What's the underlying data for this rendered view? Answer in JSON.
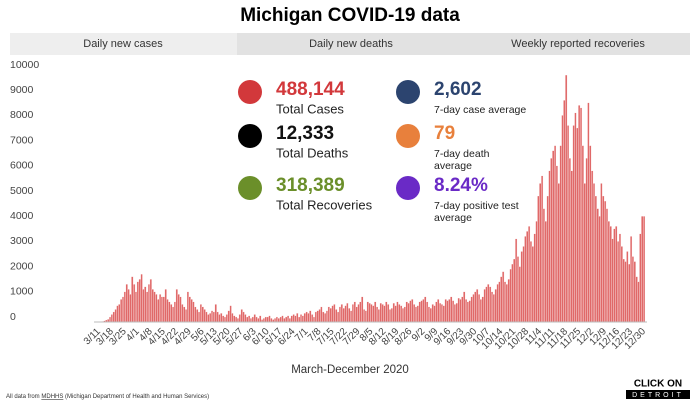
{
  "header": {
    "title": "Michigan COVID-19 data"
  },
  "tabs": [
    "Daily new cases",
    "Daily new deaths",
    "Weekly reported recoveries"
  ],
  "stats": [
    {
      "value": "488,144",
      "label": "Total Cases",
      "color": "#d2383b"
    },
    {
      "value": "2,602",
      "label": "7-day case average",
      "color": "#2c446f"
    },
    {
      "value": "12,333",
      "label": "Total Deaths",
      "color": "#000000"
    },
    {
      "value": "79",
      "label": "7-day death average",
      "color": "#e8803c"
    },
    {
      "value": "318,389",
      "label": "Total Recoveries",
      "color": "#6b8f2a"
    },
    {
      "value": "8.24%",
      "label": "7-day positive test average",
      "color": "#6a2ac6"
    }
  ],
  "chart_data": {
    "type": "bar",
    "color": "#e06868",
    "x_label": "March-December 2020",
    "ylim": [
      0,
      10000
    ],
    "yticks": [
      0,
      1000,
      2000,
      3000,
      4000,
      5000,
      6000,
      7000,
      8000,
      9000,
      10000
    ],
    "categories": [
      "3/11",
      null,
      null,
      null,
      null,
      null,
      null,
      "3/18",
      null,
      null,
      null,
      null,
      null,
      null,
      "3/25",
      null,
      null,
      null,
      null,
      null,
      null,
      "4/1",
      null,
      null,
      null,
      null,
      null,
      null,
      "4/8",
      null,
      null,
      null,
      null,
      null,
      null,
      "4/15",
      null,
      null,
      null,
      null,
      null,
      null,
      "4/22",
      null,
      null,
      null,
      null,
      null,
      null,
      "4/29",
      null,
      null,
      null,
      null,
      null,
      null,
      "5/6",
      null,
      null,
      null,
      null,
      null,
      null,
      "5/13",
      null,
      null,
      null,
      null,
      null,
      null,
      "5/20",
      null,
      null,
      null,
      null,
      null,
      null,
      "5/27",
      null,
      null,
      null,
      null,
      null,
      null,
      "6/3",
      null,
      null,
      null,
      null,
      null,
      null,
      "6/10",
      null,
      null,
      null,
      null,
      null,
      null,
      "6/17",
      null,
      null,
      null,
      null,
      null,
      null,
      "6/24",
      null,
      null,
      null,
      null,
      null,
      null,
      "7/1",
      null,
      null,
      null,
      null,
      null,
      null,
      "7/8",
      null,
      null,
      null,
      null,
      null,
      null,
      "7/15",
      null,
      null,
      null,
      null,
      null,
      null,
      "7/22",
      null,
      null,
      null,
      null,
      null,
      null,
      "7/29",
      null,
      null,
      null,
      null,
      null,
      null,
      "8/5",
      null,
      null,
      null,
      null,
      null,
      null,
      "8/12",
      null,
      null,
      null,
      null,
      null,
      null,
      "8/19",
      null,
      null,
      null,
      null,
      null,
      null,
      "8/26",
      null,
      null,
      null,
      null,
      null,
      null,
      "9/2",
      null,
      null,
      null,
      null,
      null,
      null,
      "9/9",
      null,
      null,
      null,
      null,
      null,
      null,
      "9/16",
      null,
      null,
      null,
      null,
      null,
      null,
      "9/23",
      null,
      null,
      null,
      null,
      null,
      null,
      "9/30",
      null,
      null,
      null,
      null,
      null,
      null,
      "10/7",
      null,
      null,
      null,
      null,
      null,
      null,
      "10/14",
      null,
      null,
      null,
      null,
      null,
      null,
      "10/21",
      null,
      null,
      null,
      null,
      null,
      null,
      "10/28",
      null,
      null,
      null,
      null,
      null,
      null,
      "11/4",
      null,
      null,
      null,
      null,
      null,
      null,
      "11/11",
      null,
      null,
      null,
      null,
      null,
      null,
      "11/18",
      null,
      null,
      null,
      null,
      null,
      null,
      "11/25",
      null,
      null,
      null,
      null,
      null,
      null,
      "12/2",
      null,
      null,
      null,
      null,
      null,
      null,
      "12/9",
      null,
      null,
      null,
      null,
      null,
      null,
      "12/16",
      null,
      null,
      null,
      null,
      null,
      null,
      "12/23",
      null,
      null,
      null,
      null,
      null,
      null,
      "12/30"
    ],
    "values": [
      2,
      10,
      25,
      50,
      80,
      110,
      200,
      300,
      400,
      500,
      650,
      700,
      900,
      1000,
      1200,
      1500,
      1300,
      1100,
      1800,
      1500,
      1200,
      1600,
      1700,
      1900,
      1300,
      1400,
      1200,
      1500,
      1700,
      1300,
      1200,
      1100,
      900,
      1100,
      1000,
      1000,
      1300,
      900,
      800,
      700,
      600,
      800,
      1300,
      1100,
      1000,
      700,
      600,
      500,
      1200,
      1000,
      900,
      800,
      600,
      500,
      400,
      700,
      600,
      500,
      400,
      300,
      350,
      450,
      400,
      700,
      400,
      300,
      350,
      250,
      200,
      300,
      450,
      650,
      350,
      250,
      200,
      150,
      300,
      500,
      400,
      300,
      200,
      250,
      150,
      200,
      300,
      200,
      150,
      250,
      100,
      150,
      200,
      200,
      250,
      150,
      100,
      150,
      200,
      150,
      200,
      250,
      150,
      200,
      250,
      150,
      250,
      300,
      250,
      350,
      200,
      300,
      250,
      350,
      400,
      350,
      450,
      300,
      200,
      400,
      450,
      500,
      600,
      400,
      350,
      450,
      600,
      550,
      650,
      700,
      500,
      400,
      600,
      700,
      550,
      650,
      750,
      550,
      450,
      700,
      800,
      600,
      700,
      800,
      1000,
      500,
      450,
      800,
      750,
      700,
      650,
      800,
      600,
      500,
      750,
      700,
      650,
      800,
      700,
      500,
      550,
      750,
      650,
      800,
      700,
      650,
      550,
      600,
      800,
      750,
      850,
      900,
      700,
      600,
      650,
      800,
      850,
      900,
      1000,
      800,
      600,
      550,
      700,
      650,
      800,
      900,
      750,
      700,
      650,
      900,
      850,
      900,
      1000,
      850,
      700,
      750,
      950,
      900,
      1000,
      1200,
      900,
      800,
      850,
      1000,
      1100,
      1200,
      1300,
      1100,
      900,
      1000,
      1300,
      1400,
      1500,
      1400,
      1200,
      1100,
      1300,
      1500,
      1600,
      1800,
      2000,
      1600,
      1500,
      1700,
      2100,
      2300,
      2500,
      3300,
      2600,
      2200,
      2800,
      3000,
      3400,
      3600,
      3800,
      3200,
      3000,
      3500,
      4000,
      5000,
      5500,
      5800,
      4500,
      4000,
      5000,
      6000,
      6500,
      6800,
      7000,
      6200,
      5500,
      7000,
      8200,
      8800,
      9800,
      7800,
      6500,
      6000,
      7800,
      8300,
      7700,
      8600,
      8500,
      7000,
      5500,
      6500,
      8700,
      7000,
      6000,
      5500,
      5000,
      4500,
      4200,
      5500,
      5000,
      4800,
      4500,
      4000,
      3800,
      3300,
      3700,
      3800,
      3200,
      3500,
      3000,
      2500,
      2400,
      2800,
      2300,
      3400,
      2600,
      2400,
      1800,
      1600,
      3500,
      4200,
      4200
    ]
  },
  "footer": {
    "prefix": "All data from",
    "link": "MDHHS",
    "suffix": "(Michigan Department of Health and Human Services)"
  },
  "logo": {
    "top": "CLICK ON",
    "bottom": "DETROIT"
  }
}
